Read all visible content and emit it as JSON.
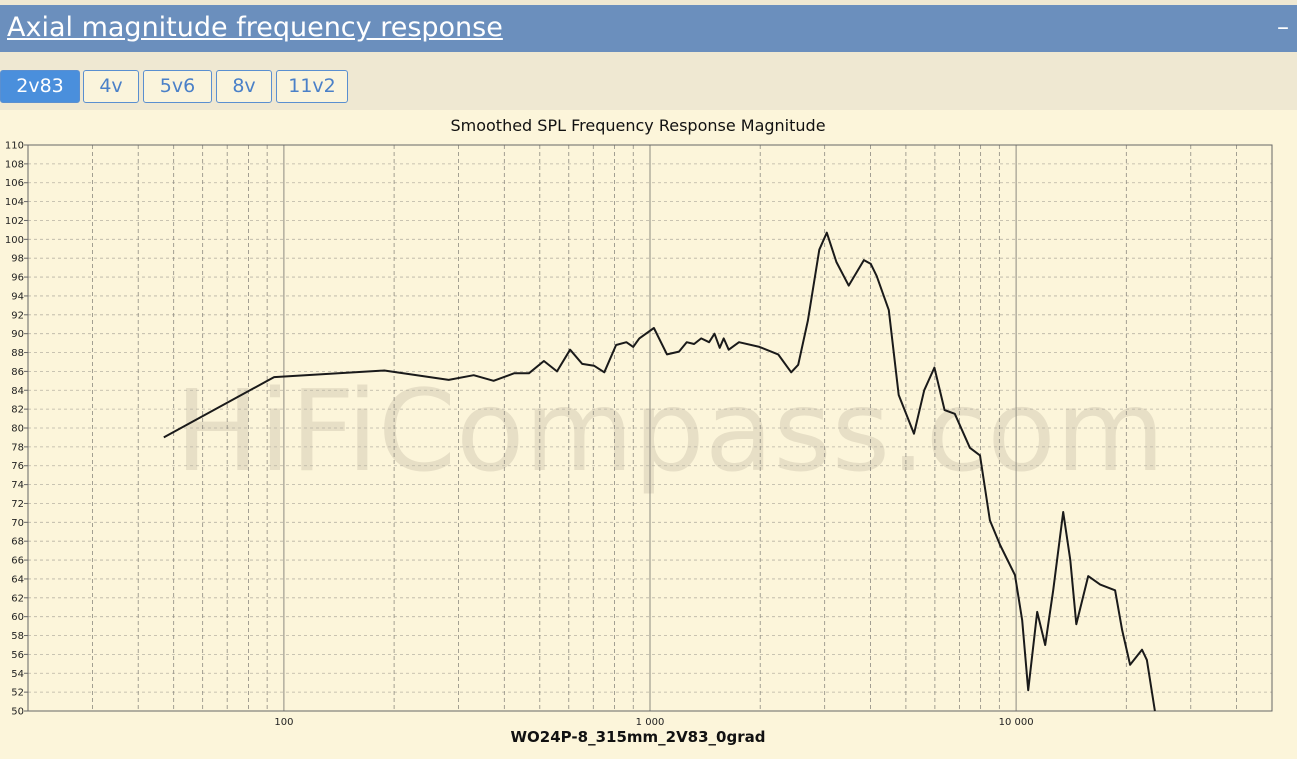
{
  "header": {
    "title": "Axial magnitude frequency response",
    "collapse": "–"
  },
  "tabs": [
    "2v83",
    "4v",
    "5v6",
    "8v",
    "11v2"
  ],
  "active_tab": 0,
  "chart_data": {
    "type": "line",
    "title": "Smoothed SPL Frequency Response Magnitude",
    "x_label": "WO24P-8_315mm_2V83_0grad",
    "watermark": "HiFiCompass.com",
    "x_scale": "log",
    "grid": true,
    "color": "#1a1a1a",
    "xlim": [
      20,
      50000
    ],
    "ylim": [
      50,
      110
    ],
    "xticks": [
      100,
      {
        "value": 1000,
        "label": "1 000"
      },
      {
        "value": 10000,
        "label": "10 000"
      }
    ],
    "minor_xticks": [
      20,
      30,
      40,
      50,
      60,
      70,
      80,
      90,
      200,
      300,
      400,
      500,
      600,
      700,
      800,
      900,
      2000,
      3000,
      4000,
      5000,
      6000,
      7000,
      8000,
      9000,
      20000,
      30000,
      40000
    ],
    "yticks": [
      50,
      52,
      54,
      56,
      58,
      60,
      62,
      64,
      66,
      68,
      70,
      72,
      74,
      76,
      78,
      80,
      82,
      84,
      86,
      88,
      90,
      92,
      94,
      96,
      98,
      100,
      102,
      104,
      106,
      108,
      110
    ],
    "x": [
      47,
      94,
      188,
      282,
      330,
      374,
      425,
      467,
      513,
      557,
      605,
      653,
      703,
      750,
      808,
      862,
      900,
      935,
      1025,
      1113,
      1200,
      1260,
      1320,
      1380,
      1450,
      1500,
      1550,
      1590,
      1640,
      1750,
      1990,
      2240,
      2430,
      2540,
      2700,
      2900,
      3040,
      3230,
      3490,
      3840,
      4010,
      4160,
      4490,
      4780,
      5260,
      5610,
      5980,
      6380,
      6800,
      7480,
      7970,
      8480,
      9040,
      9930,
      10390,
      10790,
      11420,
      12010,
      12630,
      13450,
      14060,
      14600,
      15740,
      16970,
      18640,
      19480,
      20480,
      22070,
      22770,
      23940
    ],
    "values": [
      79.0,
      85.4,
      86.1,
      85.1,
      85.6,
      85.0,
      85.8,
      85.8,
      87.1,
      86.0,
      88.3,
      86.8,
      86.6,
      85.9,
      88.8,
      89.1,
      88.6,
      89.5,
      90.6,
      87.8,
      88.1,
      89.1,
      88.9,
      89.5,
      89.1,
      90.0,
      88.5,
      89.5,
      88.3,
      89.1,
      88.6,
      87.8,
      85.9,
      86.7,
      91.4,
      98.9,
      100.7,
      97.6,
      95.1,
      97.8,
      97.4,
      96.1,
      92.5,
      83.5,
      79.4,
      84.0,
      86.4,
      81.9,
      81.5,
      77.9,
      77.1,
      70.2,
      67.6,
      64.4,
      59.6,
      52.2,
      60.5,
      57.0,
      62.8,
      71.1,
      66.0,
      59.2,
      64.3,
      63.4,
      62.8,
      58.6,
      54.9,
      56.5,
      55.4,
      50.0
    ]
  }
}
